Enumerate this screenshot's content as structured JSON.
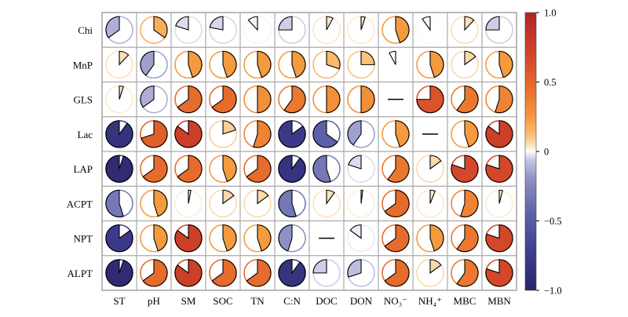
{
  "chart_data": {
    "type": "heatmap",
    "title": "",
    "xlabel": "",
    "ylabel": "",
    "columns": [
      "ST",
      "pH",
      "SM",
      "SOC",
      "TN",
      "C:N",
      "DOC",
      "DON",
      "NO₃⁻",
      "NH₄⁺",
      "MBC",
      "MBN"
    ],
    "rows": [
      "Chi",
      "MnP",
      "GLS",
      "Lac",
      "LAP",
      "ACPT",
      "NPT",
      "ALPT"
    ],
    "values": [
      [
        -0.35,
        0.35,
        -0.2,
        -0.22,
        -0.12,
        -0.25,
        0.08,
        0.05,
        0.45,
        -0.1,
        0.12,
        -0.25
      ],
      [
        0.12,
        -0.4,
        0.45,
        0.45,
        0.45,
        0.45,
        0.3,
        0.25,
        -0.08,
        0.45,
        0.15,
        0.45
      ],
      [
        0.05,
        -0.35,
        0.65,
        0.65,
        0.5,
        0.6,
        0.5,
        0.5,
        0.0,
        0.75,
        0.6,
        0.55
      ],
      [
        -0.9,
        0.7,
        0.85,
        0.2,
        0.55,
        -0.85,
        -0.65,
        -0.4,
        0.45,
        0.0,
        0.45,
        0.85
      ],
      [
        -0.95,
        0.65,
        0.65,
        0.45,
        0.65,
        -0.9,
        -0.55,
        -0.2,
        0.6,
        0.15,
        0.8,
        0.8
      ],
      [
        -0.55,
        0.45,
        0.03,
        0.15,
        0.15,
        -0.55,
        0.1,
        0.02,
        0.65,
        0.06,
        0.55,
        0.04
      ],
      [
        -0.85,
        0.45,
        0.85,
        0.45,
        0.45,
        -0.45,
        0.0,
        -0.15,
        0.65,
        0.45,
        0.6,
        0.8
      ],
      [
        -0.95,
        0.65,
        0.85,
        0.65,
        0.65,
        -0.9,
        -0.25,
        -0.3,
        0.65,
        0.15,
        0.6,
        0.8
      ]
    ],
    "colorbar": {
      "min": -1.0,
      "max": 1.0,
      "ticks": [
        1.0,
        0.5,
        0,
        -0.5,
        -1.0
      ],
      "tick_labels": [
        "1.0",
        "0.5",
        "0",
        "−0.5",
        "−1.0"
      ],
      "palette": [
        "#2c2467",
        "#3e3f92",
        "#5e63aa",
        "#8e8fc4",
        "#c7c6e2",
        "#fdfdfd",
        "#fde5c3",
        "#fbbf73",
        "#f49a3e",
        "#e86f2d",
        "#d1442a",
        "#b22623"
      ]
    },
    "grid": true
  }
}
